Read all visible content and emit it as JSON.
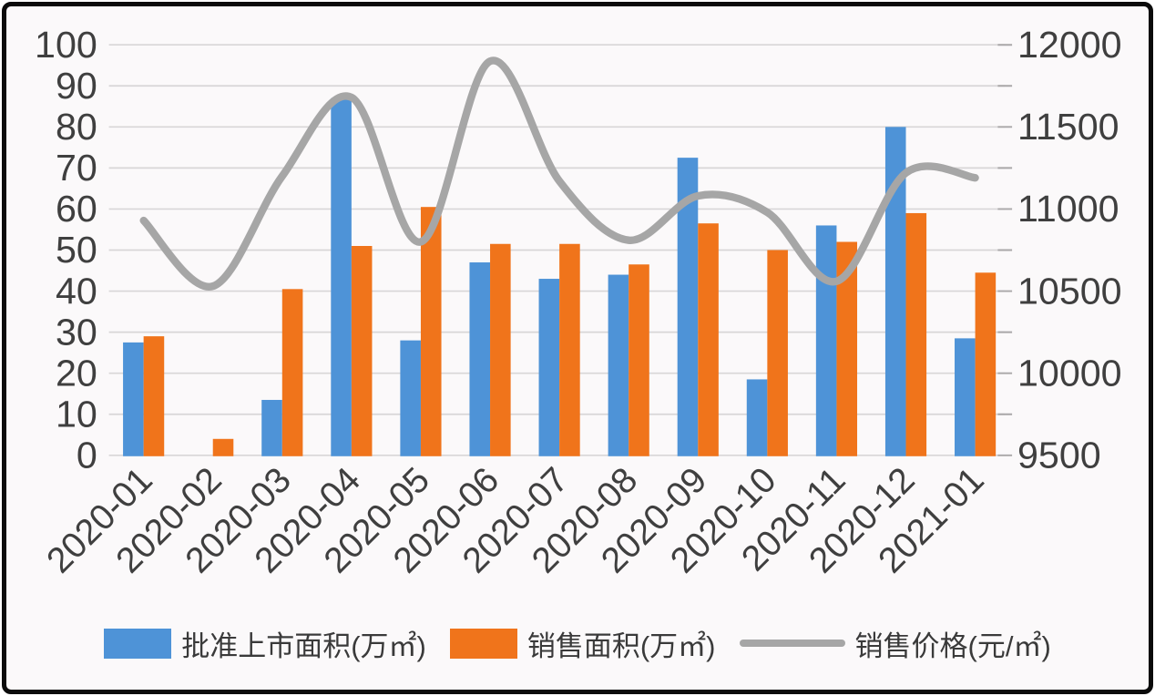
{
  "chart_data": {
    "type": "combo",
    "categories": [
      "2020-01",
      "2020-02",
      "2020-03",
      "2020-04",
      "2020-05",
      "2020-06",
      "2020-07",
      "2020-08",
      "2020-09",
      "2020-10",
      "2020-11",
      "2020-12",
      "2021-01"
    ],
    "series": [
      {
        "name": "批准上市面积(万㎡)",
        "key": "approved_area",
        "type": "bar",
        "axis": "left",
        "color": "#4e93d7",
        "values": [
          27.5,
          0,
          13.5,
          87,
          28,
          47,
          43,
          44,
          72.5,
          18.5,
          56,
          80,
          28.5
        ]
      },
      {
        "name": "销售面积(万㎡)",
        "key": "sales_area",
        "type": "bar",
        "axis": "left",
        "color": "#f0741b",
        "values": [
          29,
          4,
          40.5,
          51,
          60.5,
          51.5,
          51.5,
          46.5,
          56.5,
          50,
          52,
          59,
          44.5
        ]
      },
      {
        "name": "销售价格(元/㎡)",
        "key": "sales_price",
        "type": "line",
        "axis": "right",
        "color": "#a6a6a6",
        "values": [
          10930,
          10530,
          11200,
          11680,
          10800,
          11900,
          11170,
          10810,
          11080,
          10980,
          10560,
          11220,
          11190
        ]
      }
    ],
    "left_axis": {
      "min": 0,
      "max": 100,
      "tick_step": 10,
      "tick_labels": [
        "0",
        "10",
        "20",
        "30",
        "40",
        "50",
        "60",
        "70",
        "80",
        "90",
        "100"
      ]
    },
    "right_axis": {
      "min": 9500,
      "max": 12000,
      "label_step": 500,
      "minor_tick_step": 250,
      "tick_labels": [
        "9500",
        "10000",
        "10500",
        "11000",
        "11500",
        "12000"
      ]
    },
    "grid": true,
    "legend_position": "bottom",
    "colors": {
      "grid": "#d8d6d7",
      "right_tick": "#a9a7a8",
      "axis_text": "#3f3f3f",
      "background": "#fbf9fa",
      "frame_border": "#0b0b0b"
    }
  }
}
